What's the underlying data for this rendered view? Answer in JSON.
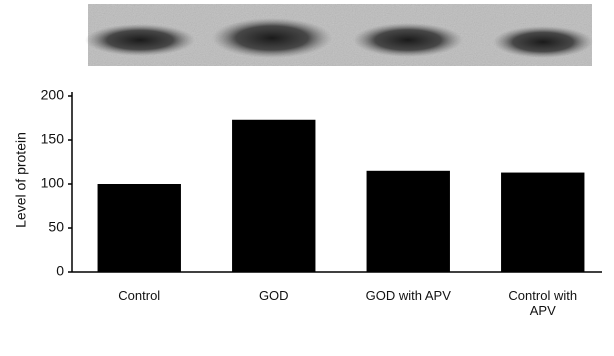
{
  "chart_data": {
    "type": "bar",
    "y_label": "Level of protein",
    "categories": [
      "Control",
      "GOD",
      "GOD with APV",
      "Control with APV"
    ],
    "values": [
      100,
      173,
      115,
      113
    ],
    "color": "#000000",
    "ylim": [
      0,
      200
    ],
    "yticks": [
      0,
      50,
      100,
      150,
      200
    ],
    "grid": false
  }
}
